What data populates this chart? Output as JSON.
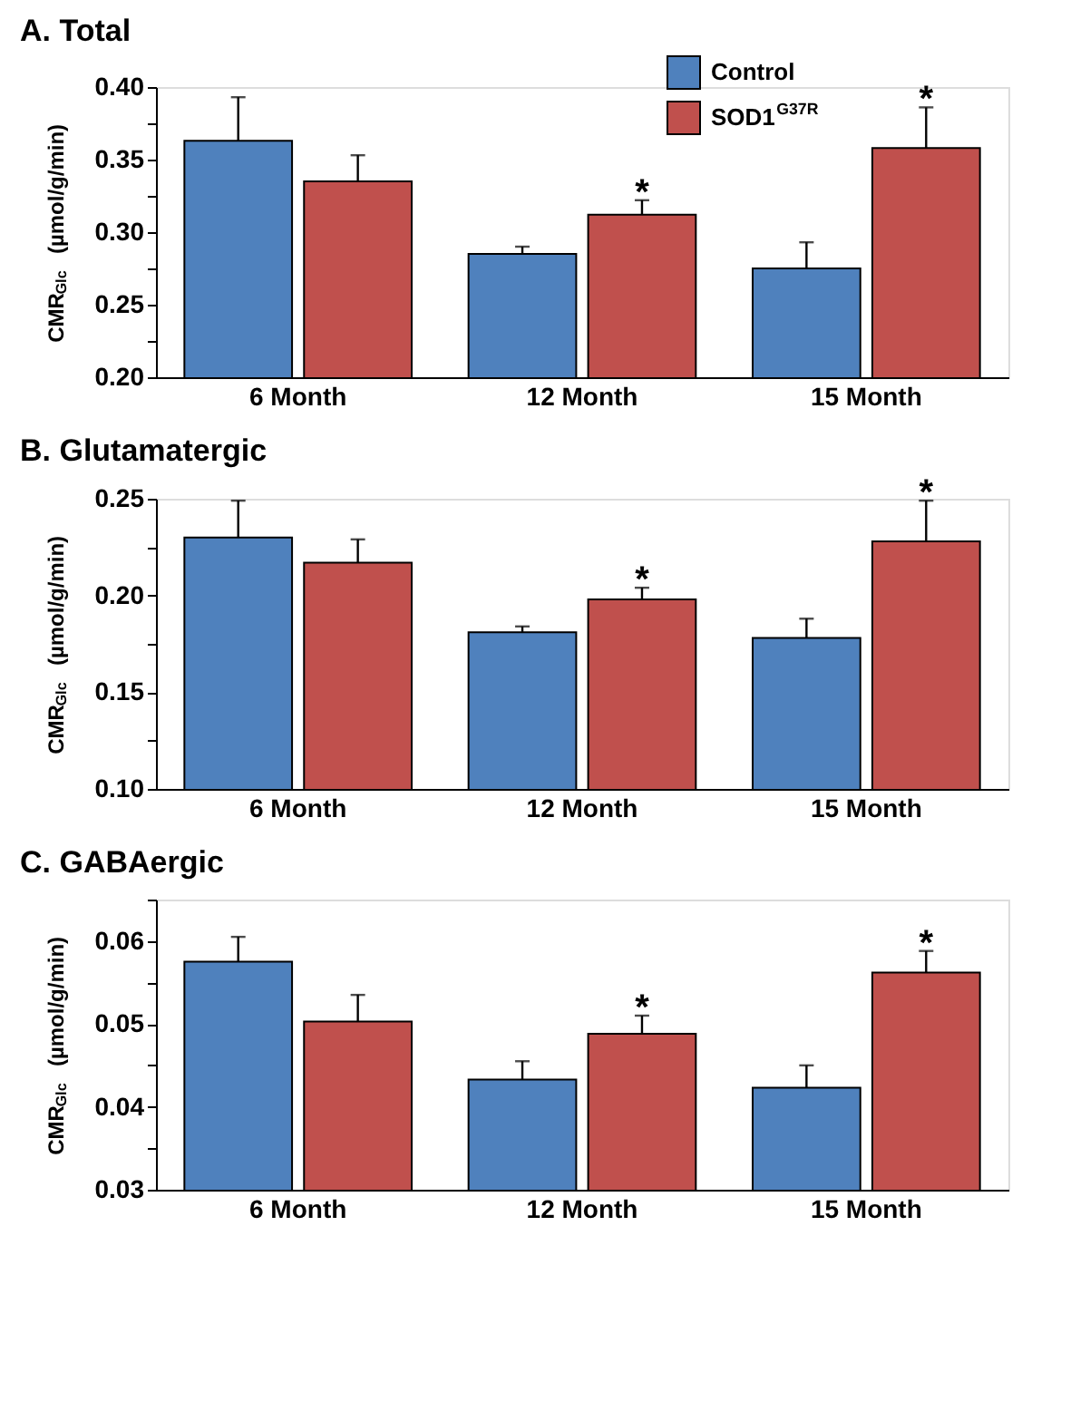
{
  "chart_data": [
    {
      "type": "bar",
      "title": "A. Total",
      "ylabel": "CMR$_{Glc}$ (µmol/g/min)",
      "categories": [
        "6 Month",
        "12 Month",
        "15 Month"
      ],
      "series": [
        {
          "name": "Control",
          "color": "#4f81bd",
          "values": [
            0.363,
            0.285,
            0.275
          ],
          "errors": [
            [
              0.363,
              0.393
            ],
            [
              0.285,
              0.29
            ],
            [
              0.275,
              0.293
            ]
          ]
        },
        {
          "name": "SOD1$^{G37R}$",
          "color": "#c0504d",
          "values": [
            0.335,
            0.312,
            0.358
          ],
          "errors": [
            [
              0.335,
              0.353
            ],
            [
              0.312,
              0.322
            ],
            [
              0.358,
              0.386
            ]
          ]
        }
      ],
      "ylim": [
        0.2,
        0.4
      ],
      "yticks": [
        {
          "value": 0.2,
          "label": "0.20"
        },
        {
          "value": 0.225,
          "label": null
        },
        {
          "value": 0.25,
          "label": "0.25"
        },
        {
          "value": 0.275,
          "label": null
        },
        {
          "value": 0.3,
          "label": "0.30"
        },
        {
          "value": 0.325,
          "label": null
        },
        {
          "value": 0.35,
          "label": "0.35"
        },
        {
          "value": 0.375,
          "label": null
        },
        {
          "value": 0.4,
          "label": "0.40"
        }
      ],
      "annotations": [
        {
          "text": "*",
          "x": "12 Month",
          "y": 0.312
        },
        {
          "text": "*",
          "x": "15 Month",
          "y": 0.358
        }
      ],
      "grid": false,
      "legend": "top right"
    },
    {
      "type": "bar",
      "title": "B. Glutamatergic",
      "ylabel": "CMR$_{Glc}$ (µmol/g/min)",
      "categories": [
        "6 Month",
        "12 Month",
        "15 Month"
      ],
      "series": [
        {
          "name": "Control",
          "color": "#4f81bd",
          "values": [
            0.23,
            0.181,
            0.178
          ],
          "errors": [
            [
              0.23,
              0.249
            ],
            [
              0.181,
              0.184
            ],
            [
              0.178,
              0.188
            ]
          ]
        },
        {
          "name": "SOD1$^{G37R}$",
          "color": "#c0504d",
          "values": [
            0.217,
            0.198,
            0.228
          ],
          "errors": [
            [
              0.217,
              0.229
            ],
            [
              0.198,
              0.204
            ],
            [
              0.228,
              0.249
            ]
          ]
        }
      ],
      "ylim": [
        0.1,
        0.25
      ],
      "yticks": [
        {
          "value": 0.1,
          "label": "0.10"
        },
        {
          "value": 0.125,
          "label": null
        },
        {
          "value": 0.15,
          "label": "0.15"
        },
        {
          "value": 0.175,
          "label": null
        },
        {
          "value": 0.2,
          "label": "0.20"
        },
        {
          "value": 0.225,
          "label": null
        },
        {
          "value": 0.25,
          "label": "0.25"
        }
      ],
      "annotations": [
        {
          "text": "*",
          "x": "12 Month",
          "y": 0.198
        },
        {
          "text": "*",
          "x": "15 Month",
          "y": 0.228
        }
      ],
      "grid": false,
      "legend": false
    },
    {
      "type": "bar",
      "title": "C. GABAergic",
      "ylabel": "CMR$_{Glc}$ (µmol/g/min)",
      "categories": [
        "6 Month",
        "12 Month",
        "15 Month"
      ],
      "series": [
        {
          "name": "Control",
          "color": "#4f81bd",
          "values": [
            0.0575,
            0.0433,
            0.0423
          ],
          "errors": [
            [
              0.0575,
              0.0605
            ],
            [
              0.0433,
              0.0455
            ],
            [
              0.0423,
              0.045
            ]
          ]
        },
        {
          "name": "SOD1$^{G37R}$",
          "color": "#c0504d",
          "values": [
            0.0503,
            0.0488,
            0.0562
          ],
          "errors": [
            [
              0.0503,
              0.0535
            ],
            [
              0.0488,
              0.051
            ],
            [
              0.0562,
              0.0588
            ]
          ]
        }
      ],
      "ylim": [
        0.03,
        0.065
      ],
      "yticks": [
        {
          "value": 0.03,
          "label": "0.03"
        },
        {
          "value": 0.035,
          "label": null
        },
        {
          "value": 0.04,
          "label": "0.04"
        },
        {
          "value": 0.045,
          "label": null
        },
        {
          "value": 0.05,
          "label": "0.05"
        },
        {
          "value": 0.055,
          "label": null
        },
        {
          "value": 0.06,
          "label": "0.06"
        },
        {
          "value": 0.065,
          "label": null
        }
      ],
      "annotations": [
        {
          "text": "*",
          "x": "12 Month",
          "y": 0.0488
        },
        {
          "text": "*",
          "x": "15 Month",
          "y": 0.0562
        }
      ],
      "grid": false,
      "legend": false
    }
  ]
}
